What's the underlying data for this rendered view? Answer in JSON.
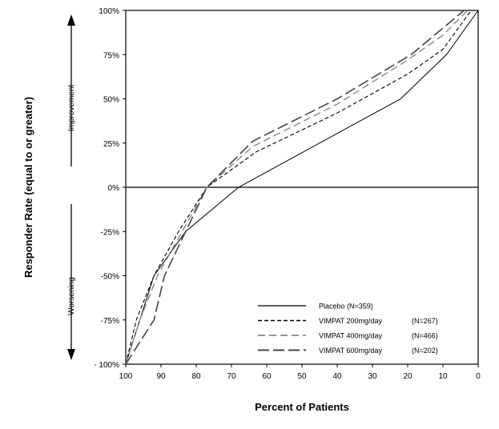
{
  "chart_data": {
    "type": "line",
    "title": "",
    "xlabel": "Percent of Patients",
    "ylabel": "Responder Rate (equal to or greater)",
    "xlim": [
      100,
      0
    ],
    "ylim": [
      -100,
      100
    ],
    "x_ticks": [
      "100",
      "90",
      "80",
      "70",
      "60",
      "50",
      "40",
      "30",
      "20",
      "10",
      "0"
    ],
    "y_ticks": [
      "- 100%",
      "-75%",
      "-50%",
      "-25%",
      "0%",
      "25%",
      "50%",
      "75%",
      "100%"
    ],
    "annotations": {
      "up": "Improvement",
      "down": "Worsening"
    },
    "legend_position": "bottom-right",
    "grid": false,
    "series": [
      {
        "name": "Placebo (N=359)",
        "label": "Placebo (N=359)",
        "n": "",
        "style": "solid",
        "color": "#000000",
        "points": [
          [
            100,
            -100
          ],
          [
            92,
            -50
          ],
          [
            83,
            -25
          ],
          [
            68,
            0
          ],
          [
            22,
            50
          ],
          [
            9,
            75
          ],
          [
            0,
            100
          ]
        ]
      },
      {
        "name": "VIMPAT 200mg/day (N=267)",
        "label": "VIMPAT 200mg/day",
        "n": "(N=267)",
        "style": "short-dash",
        "color": "#000000",
        "points": [
          [
            100,
            -100
          ],
          [
            97,
            -75
          ],
          [
            92,
            -50
          ],
          [
            85,
            -25
          ],
          [
            77,
            0
          ],
          [
            63,
            20
          ],
          [
            40,
            42
          ],
          [
            20,
            64
          ],
          [
            10,
            78
          ],
          [
            2,
            100
          ]
        ]
      },
      {
        "name": "VIMPAT 400mg/day (N=466)",
        "label": "VIMPAT 400mg/day",
        "n": "(N=466)",
        "style": "medium-dash",
        "color": "#888888",
        "points": [
          [
            100,
            -100
          ],
          [
            96,
            -75
          ],
          [
            91,
            -50
          ],
          [
            84,
            -25
          ],
          [
            77,
            0
          ],
          [
            64,
            23
          ],
          [
            40,
            47
          ],
          [
            20,
            72
          ],
          [
            10,
            86
          ],
          [
            3,
            100
          ]
        ]
      },
      {
        "name": "VIMPAT 600mg/day (N=202)",
        "label": "VIMPAT 600mg/day",
        "n": "(N=202)",
        "style": "long-dash",
        "color": "#444444",
        "points": [
          [
            100,
            -100
          ],
          [
            92,
            -75
          ],
          [
            89,
            -50
          ],
          [
            83,
            -25
          ],
          [
            77,
            0
          ],
          [
            64,
            26
          ],
          [
            40,
            50
          ],
          [
            19,
            75
          ],
          [
            4,
            100
          ]
        ]
      }
    ]
  }
}
